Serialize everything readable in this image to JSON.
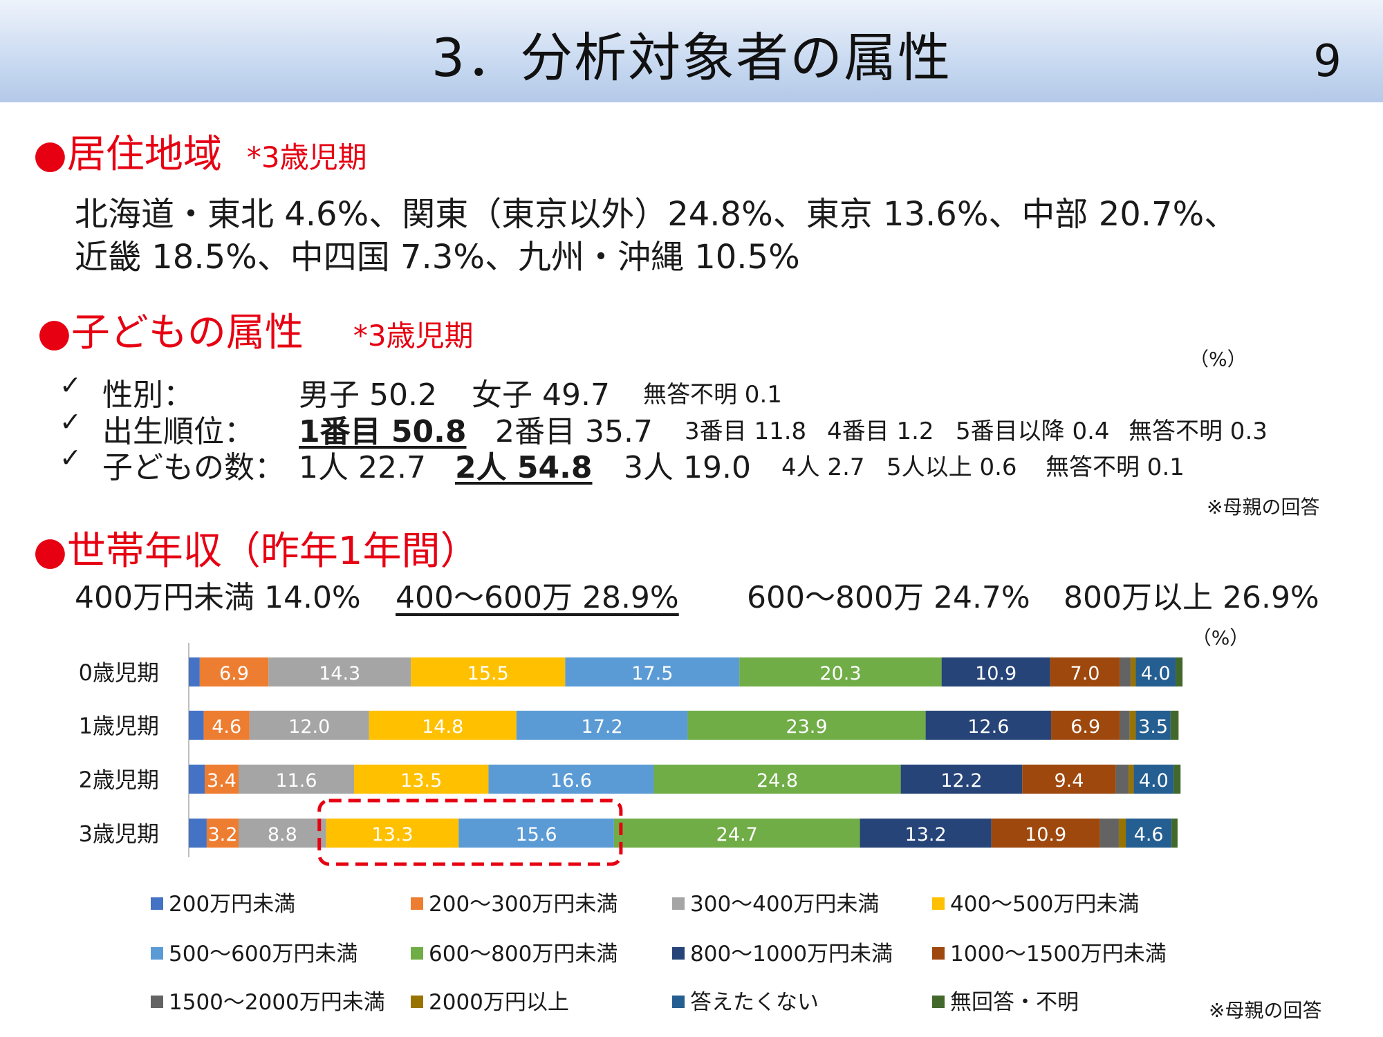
{
  "header": {
    "title": "3．分析対象者の属性",
    "page_number": "9"
  },
  "region": {
    "heading": "●居住地域",
    "note": "*3歳児期",
    "line1": "北海道・東北 4.6%、関東（東京以外）24.8%、東京 13.6%、中部 20.7%、",
    "line2": "近畿 18.5%、中四国 7.3%、九州・沖縄 10.5%"
  },
  "child": {
    "heading": "●子どもの属性",
    "note": "*3歳児期",
    "unit": "（%）",
    "rows": [
      {
        "check": "✓",
        "label": "性別：",
        "items": [
          {
            "text": "男子 50.2",
            "style": "normal"
          },
          {
            "text": "女子 49.7",
            "style": "normal"
          },
          {
            "text": "無答不明 0.1",
            "style": "small"
          }
        ]
      },
      {
        "check": "✓",
        "label": "出生順位：",
        "items": [
          {
            "text": "1番目 50.8",
            "style": "bold"
          },
          {
            "text": "2番目 35.7",
            "style": "normal"
          },
          {
            "text": "3番目 11.8",
            "style": "small"
          },
          {
            "text": "4番目 1.2",
            "style": "small"
          },
          {
            "text": "5番目以降 0.4",
            "style": "small"
          },
          {
            "text": "無答不明 0.3",
            "style": "small"
          }
        ]
      },
      {
        "check": "✓",
        "label": "子どもの数：",
        "items": [
          {
            "text": "1人 22.7",
            "style": "normal"
          },
          {
            "text": "2人 54.8",
            "style": "bold"
          },
          {
            "text": "3人 19.0",
            "style": "normal"
          },
          {
            "text": "4人 2.7",
            "style": "small"
          },
          {
            "text": "5人以上 0.6",
            "style": "small"
          },
          {
            "text": "無答不明 0.1",
            "style": "small"
          }
        ]
      }
    ],
    "source_note": "※母親の回答"
  },
  "income": {
    "heading": "●世帯年収（昨年1年間）",
    "summary": [
      {
        "text": "400万円未満 14.0%",
        "underline": false
      },
      {
        "text": "400～600万 28.9%",
        "underline": true
      },
      {
        "text": "600～800万 24.7%",
        "underline": false
      },
      {
        "text": "800万以上 26.9%",
        "underline": false
      }
    ],
    "source_note": "※母親の回答"
  },
  "chart_data": {
    "type": "bar",
    "orientation": "horizontal",
    "stacked": true,
    "unit_label": "（%）",
    "xlim": [
      0,
      100
    ],
    "grid": false,
    "legend_position": "bottom",
    "categories": [
      "0歳児期",
      "1歳児期",
      "2歳児期",
      "3歳児期"
    ],
    "series": [
      {
        "name": "200万円未満",
        "color": "#4472c4",
        "values": [
          1.1,
          1.5,
          1.6,
          1.8
        ]
      },
      {
        "name": "200～300万円未満",
        "color": "#ed7d31",
        "values": [
          6.9,
          4.6,
          3.4,
          3.2
        ]
      },
      {
        "name": "300～400万円未満",
        "color": "#a5a5a5",
        "values": [
          14.3,
          12.0,
          11.6,
          8.8
        ]
      },
      {
        "name": "400～500万円未満",
        "color": "#ffc000",
        "values": [
          15.5,
          14.8,
          13.5,
          13.3
        ]
      },
      {
        "name": "500～600万円未満",
        "color": "#5b9bd5",
        "values": [
          17.5,
          17.2,
          16.6,
          15.6
        ]
      },
      {
        "name": "600～800万円未満",
        "color": "#70ad47",
        "values": [
          20.3,
          23.9,
          24.8,
          24.7
        ]
      },
      {
        "name": "800～1000万円未満",
        "color": "#264478",
        "values": [
          10.9,
          12.6,
          12.2,
          13.2
        ]
      },
      {
        "name": "1000～1500万円未満",
        "color": "#9e480e",
        "values": [
          7.0,
          6.9,
          9.4,
          10.9
        ]
      },
      {
        "name": "1500～2000万円未満",
        "color": "#636363",
        "values": [
          1.1,
          1.0,
          1.3,
          1.9
        ]
      },
      {
        "name": "2000万円以上",
        "color": "#997300",
        "values": [
          0.5,
          0.6,
          0.5,
          0.7
        ]
      },
      {
        "name": "答えたくない",
        "color": "#255e91",
        "values": [
          4.0,
          3.5,
          4.0,
          4.6
        ]
      },
      {
        "name": "無回答・不明",
        "color": "#43682b",
        "values": [
          0.7,
          0.8,
          0.7,
          0.6
        ]
      }
    ],
    "labeled_series": [
      1,
      2,
      3,
      4,
      5,
      6,
      7,
      10
    ],
    "label_colors": {
      "1": "#ffffff",
      "2": "#ffffff",
      "3": "#ffffff",
      "4": "#ffffff",
      "5": "#ffffff",
      "6": "#ffffff",
      "7": "#ffffff",
      "10": "#ffffff"
    },
    "highlight": {
      "category_index": 3,
      "series_from": 3,
      "series_to": 4,
      "color": "#e60012"
    }
  }
}
